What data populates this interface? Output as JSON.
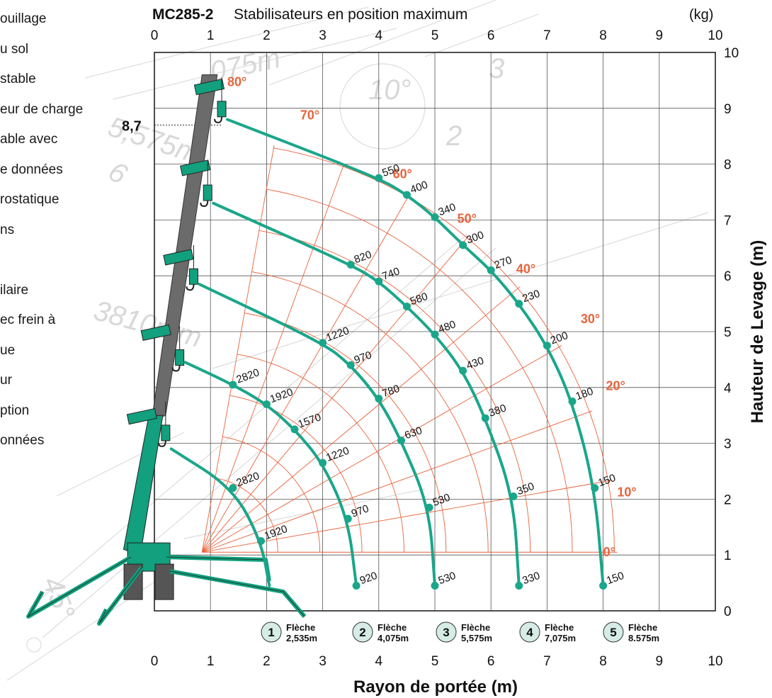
{
  "side_list": [
    "ouillage",
    "u sol",
    "stable",
    "eur de charge",
    "able avec",
    "e données",
    "rostatique",
    "ns",
    "",
    "ilaire",
    "ec frein à",
    "ue",
    "ur",
    "ption",
    "onnées"
  ],
  "watermark_texts": [
    "075m",
    "5,575m",
    "10°",
    "3810mm",
    "45°",
    "3",
    "2",
    "6"
  ],
  "colors": {
    "accent": "#e8623a",
    "curve": "#1aa68a",
    "grid": "#333333",
    "boom": "#6b6b6b",
    "crane": "#12a07e"
  },
  "chart_data": {
    "type": "line",
    "title_bold": "MC285-2",
    "title": "Stabilisateurs en position maximum",
    "unit_label": "(kg)",
    "xlabel": "Rayon de portée (m)",
    "ylabel": "Hauteur de Levage (m)",
    "xlim": [
      0,
      10
    ],
    "ylim": [
      0,
      10
    ],
    "x_ticks": [
      "0",
      "1",
      "2",
      "3",
      "4",
      "5",
      "6",
      "7",
      "8",
      "9",
      "10"
    ],
    "y_ticks": [
      "0",
      "1",
      "2",
      "3",
      "4",
      "5",
      "6",
      "7",
      "8",
      "9",
      "10"
    ],
    "max_height_label": "8,7",
    "max_height": 8.7,
    "angles": [
      0,
      10,
      20,
      30,
      40,
      50,
      60,
      70,
      80
    ],
    "angle_labels": [
      "0°",
      "10°",
      "20°",
      "30°",
      "40°",
      "50°",
      "60°",
      "70°",
      "80°"
    ],
    "booms": [
      {
        "id": "1",
        "label": "Flèche",
        "length": "2,535m",
        "points": [
          {
            "x": 1.9,
            "y": 1.25,
            "load": "1920"
          },
          {
            "x": 1.4,
            "y": 2.2,
            "load": "2820"
          }
        ],
        "end": {
          "x": 2.05,
          "y": 0.45
        }
      },
      {
        "id": "2",
        "label": "Flèche",
        "length": "4,075m",
        "points": [
          {
            "x": 3.6,
            "y": 0.45,
            "load": "920"
          },
          {
            "x": 3.45,
            "y": 1.65,
            "load": "970"
          },
          {
            "x": 3.0,
            "y": 2.65,
            "load": "1220"
          },
          {
            "x": 2.5,
            "y": 3.25,
            "load": "1570"
          },
          {
            "x": 2.0,
            "y": 3.7,
            "load": "1920"
          },
          {
            "x": 1.4,
            "y": 4.05,
            "load": "2820"
          }
        ]
      },
      {
        "id": "3",
        "label": "Flèche",
        "length": "5,575m",
        "points": [
          {
            "x": 5.0,
            "y": 0.45,
            "load": "530"
          },
          {
            "x": 4.9,
            "y": 1.85,
            "load": "530"
          },
          {
            "x": 4.4,
            "y": 3.05,
            "load": "630"
          },
          {
            "x": 4.0,
            "y": 3.8,
            "load": "780"
          },
          {
            "x": 3.5,
            "y": 4.4,
            "load": "970"
          },
          {
            "x": 3.0,
            "y": 4.8,
            "load": "1220"
          }
        ]
      },
      {
        "id": "4",
        "label": "Flèche",
        "length": "7,075m",
        "points": [
          {
            "x": 6.5,
            "y": 0.45,
            "load": "330"
          },
          {
            "x": 6.4,
            "y": 2.05,
            "load": "350"
          },
          {
            "x": 5.9,
            "y": 3.45,
            "load": "380"
          },
          {
            "x": 5.5,
            "y": 4.3,
            "load": "430"
          },
          {
            "x": 5.0,
            "y": 4.95,
            "load": "480"
          },
          {
            "x": 4.5,
            "y": 5.45,
            "load": "580"
          },
          {
            "x": 4.0,
            "y": 5.9,
            "load": "740"
          },
          {
            "x": 3.5,
            "y": 6.2,
            "load": "820"
          }
        ]
      },
      {
        "id": "5",
        "label": "Flèche",
        "length": "8.575m",
        "points": [
          {
            "x": 8.0,
            "y": 0.45,
            "load": "150"
          },
          {
            "x": 7.85,
            "y": 2.2,
            "load": "150"
          },
          {
            "x": 7.45,
            "y": 3.75,
            "load": "180"
          },
          {
            "x": 7.0,
            "y": 4.75,
            "load": "200"
          },
          {
            "x": 6.5,
            "y": 5.5,
            "load": "230"
          },
          {
            "x": 6.0,
            "y": 6.1,
            "load": "270"
          },
          {
            "x": 5.5,
            "y": 6.55,
            "load": "300"
          },
          {
            "x": 5.0,
            "y": 7.05,
            "load": "340"
          },
          {
            "x": 4.5,
            "y": 7.45,
            "load": "400"
          },
          {
            "x": 4.0,
            "y": 7.75,
            "load": "550"
          }
        ]
      }
    ]
  }
}
